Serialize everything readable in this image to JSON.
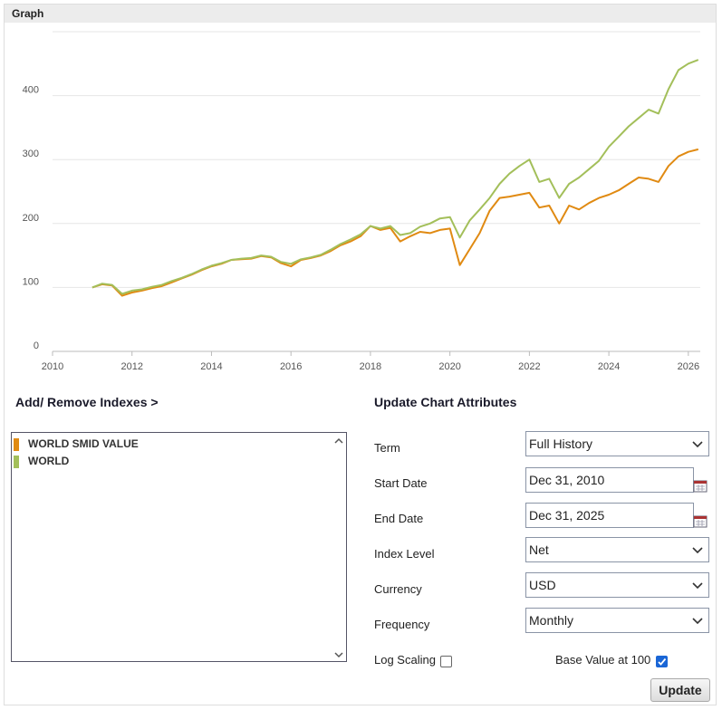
{
  "header": {
    "title": "Graph"
  },
  "chart_data": {
    "type": "line",
    "x": [
      2011,
      2011.25,
      2011.5,
      2011.75,
      2012,
      2012.25,
      2012.5,
      2012.75,
      2013,
      2013.25,
      2013.5,
      2013.75,
      2014,
      2014.25,
      2014.5,
      2014.75,
      2015,
      2015.25,
      2015.5,
      2015.75,
      2016,
      2016.25,
      2016.5,
      2016.75,
      2017,
      2017.25,
      2017.5,
      2017.75,
      2018,
      2018.25,
      2018.5,
      2018.75,
      2019,
      2019.25,
      2019.5,
      2019.75,
      2020,
      2020.25,
      2020.5,
      2020.75,
      2021,
      2021.25,
      2021.5,
      2021.75,
      2022,
      2022.25,
      2022.5,
      2022.75,
      2023,
      2023.25,
      2023.5,
      2023.75,
      2024,
      2024.25,
      2024.5,
      2024.75,
      2025,
      2025.25,
      2025.5,
      2025.75,
      2026,
      2026.25
    ],
    "series": [
      {
        "name": "WORLD SMID VALUE",
        "color": "#e08a12",
        "values": [
          100,
          105,
          103,
          87,
          92,
          95,
          99,
          102,
          108,
          114,
          120,
          127,
          133,
          137,
          143,
          144,
          145,
          149,
          147,
          138,
          133,
          143,
          146,
          150,
          157,
          166,
          172,
          180,
          196,
          190,
          193,
          172,
          180,
          187,
          185,
          190,
          192,
          135,
          160,
          185,
          220,
          240,
          242,
          245,
          248,
          225,
          228,
          200,
          228,
          222,
          232,
          240,
          245,
          252,
          262,
          272,
          270,
          265,
          290,
          305,
          312,
          316
        ]
      },
      {
        "name": "WORLD",
        "color": "#a3bf5a",
        "values": [
          100,
          106,
          104,
          90,
          95,
          97,
          101,
          104,
          110,
          115,
          121,
          128,
          134,
          138,
          143,
          145,
          146,
          150,
          148,
          140,
          137,
          144,
          147,
          151,
          159,
          168,
          175,
          183,
          196,
          192,
          196,
          182,
          185,
          195,
          200,
          208,
          210,
          178,
          205,
          222,
          240,
          262,
          278,
          290,
          300,
          265,
          270,
          240,
          262,
          272,
          285,
          298,
          320,
          336,
          352,
          365,
          378,
          372,
          410,
          440,
          450,
          456
        ]
      }
    ],
    "xlim": [
      2010,
      2026.3
    ],
    "xticks": [
      2010,
      2012,
      2014,
      2016,
      2018,
      2020,
      2022,
      2024,
      2026
    ],
    "ylim": [
      0,
      500
    ],
    "yticks": [
      0,
      100,
      200,
      300,
      400
    ],
    "grid": true
  },
  "panel": {
    "indexes_link": "Add/ Remove Indexes >",
    "attributes_title": "Update Chart Attributes",
    "fields": [
      {
        "label": "Term",
        "value": "Full History",
        "kind": "select"
      },
      {
        "label": "Start Date",
        "value": "Dec 31, 2010",
        "kind": "date"
      },
      {
        "label": "End Date",
        "value": "Dec 31, 2025",
        "kind": "date"
      },
      {
        "label": "Index Level",
        "value": "Net",
        "kind": "select"
      },
      {
        "label": "Currency",
        "value": "USD",
        "kind": "select"
      },
      {
        "label": "Frequency",
        "value": "Monthly",
        "kind": "select"
      }
    ],
    "log_scaling": {
      "label": "Log Scaling",
      "checked": false
    },
    "base_value": {
      "label": "Base Value at 100",
      "checked": true
    },
    "button": "Update"
  }
}
